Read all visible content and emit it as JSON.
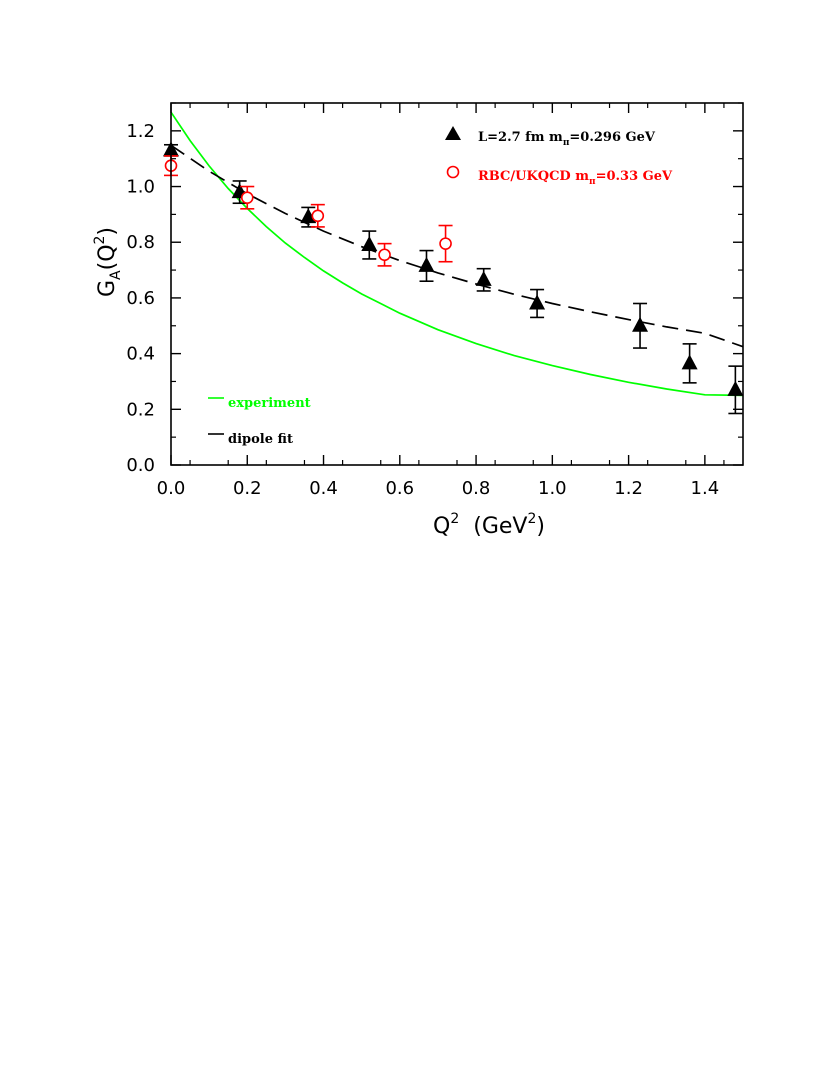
{
  "chart_data": {
    "type": "scatter",
    "xlabel": {
      "main": "Q",
      "sup": "2",
      "unit_open": "(GeV",
      "unit_sup": "2",
      "unit_close": ")"
    },
    "ylabel": {
      "main": "G",
      "sub": "A",
      "arg_open": "(Q",
      "arg_sup": "2",
      "arg_close": ")"
    },
    "xlim": [
      0.0,
      1.5
    ],
    "ylim": [
      0.0,
      1.3
    ],
    "x_ticks": [
      "0.0",
      "0.2",
      "0.4",
      "0.6",
      "0.8",
      "1.0",
      "1.2",
      "1.4"
    ],
    "y_ticks": [
      "0.0",
      "0.2",
      "0.4",
      "0.6",
      "0.8",
      "1.0",
      "1.2"
    ],
    "grid": false,
    "series": [
      {
        "name_parts": [
          "L=2.7 fm  m",
          "π",
          "=0.296 GeV"
        ],
        "marker": "filled-triangle",
        "color": "#000000",
        "points": [
          {
            "x": 0.0,
            "y": 1.13,
            "err": 0.02
          },
          {
            "x": 0.18,
            "y": 0.98,
            "err": 0.04
          },
          {
            "x": 0.36,
            "y": 0.89,
            "err": 0.035
          },
          {
            "x": 0.52,
            "y": 0.79,
            "err": 0.05
          },
          {
            "x": 0.67,
            "y": 0.715,
            "err": 0.055
          },
          {
            "x": 0.82,
            "y": 0.665,
            "err": 0.04
          },
          {
            "x": 0.96,
            "y": 0.58,
            "err": 0.05
          },
          {
            "x": 1.23,
            "y": 0.5,
            "err": 0.08
          },
          {
            "x": 1.36,
            "y": 0.365,
            "err": 0.07
          },
          {
            "x": 1.48,
            "y": 0.27,
            "err": 0.085
          }
        ]
      },
      {
        "name_parts": [
          "RBC/UKQCD  m",
          "π",
          "=0.33 GeV"
        ],
        "marker": "open-circle",
        "color": "#ff0000",
        "points": [
          {
            "x": 0.0,
            "y": 1.075,
            "err": 0.035
          },
          {
            "x": 0.2,
            "y": 0.96,
            "err": 0.04
          },
          {
            "x": 0.385,
            "y": 0.895,
            "err": 0.04
          },
          {
            "x": 0.56,
            "y": 0.755,
            "err": 0.04
          },
          {
            "x": 0.72,
            "y": 0.795,
            "err": 0.065
          }
        ]
      }
    ],
    "curves": [
      {
        "name": "experiment",
        "color": "#00ff00",
        "style": "solid",
        "x": [
          0.0,
          0.05,
          0.1,
          0.15,
          0.2,
          0.25,
          0.3,
          0.35,
          0.4,
          0.45,
          0.5,
          0.6,
          0.7,
          0.8,
          0.9,
          1.0,
          1.1,
          1.2,
          1.3,
          1.4,
          1.5
        ],
        "y": [
          1.267,
          1.165,
          1.074,
          0.993,
          0.921,
          0.856,
          0.797,
          0.745,
          0.697,
          0.654,
          0.614,
          0.545,
          0.486,
          0.436,
          0.393,
          0.357,
          0.325,
          0.297,
          0.273,
          0.252,
          0.25
        ]
      },
      {
        "name": "dipole fit",
        "color": "#000000",
        "style": "dashed",
        "x": [
          0.0,
          0.1,
          0.2,
          0.3,
          0.4,
          0.5,
          0.6,
          0.7,
          0.8,
          0.9,
          1.0,
          1.1,
          1.2,
          1.3,
          1.4,
          1.5
        ],
        "y": [
          1.148,
          1.055,
          0.974,
          0.903,
          0.84,
          0.784,
          0.734,
          0.69,
          0.65,
          0.613,
          0.58,
          0.55,
          0.522,
          0.496,
          0.473,
          0.425
        ]
      }
    ]
  }
}
